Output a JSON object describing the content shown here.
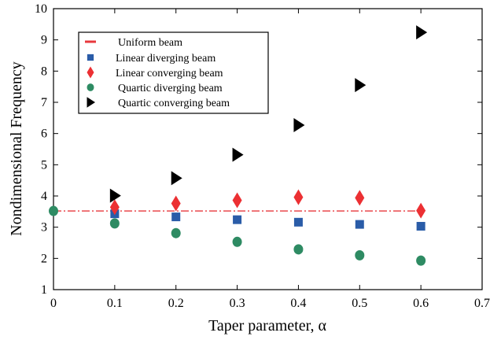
{
  "chart_data": {
    "type": "scatter",
    "title": "",
    "xlabel": "Taper parameter, α",
    "ylabel": "Nondimensional Frequency",
    "xlim": [
      0,
      0.7
    ],
    "ylim": [
      1,
      10
    ],
    "xticks": [
      "0",
      "0.1",
      "0.2",
      "0.3",
      "0.4",
      "0.5",
      "0.6",
      "0.7"
    ],
    "yticks": [
      "1",
      "2",
      "3",
      "4",
      "5",
      "6",
      "7",
      "8",
      "9",
      "10"
    ],
    "grid": false,
    "legend_position": "top-left",
    "series": [
      {
        "name": "Uniform beam",
        "marker": "dash-dot-line",
        "color": "#e8383d",
        "x": [
          0,
          0.6
        ],
        "y": [
          3.52,
          3.52
        ]
      },
      {
        "name": "Linear diverging beam",
        "marker": "square",
        "color": "#2a5ca8",
        "x": [
          0.1,
          0.2,
          0.3,
          0.4,
          0.5,
          0.6
        ],
        "y": [
          3.43,
          3.33,
          3.24,
          3.16,
          3.09,
          3.03
        ]
      },
      {
        "name": "Linear converging beam",
        "marker": "diamond",
        "color": "#ec3033",
        "x": [
          0.1,
          0.2,
          0.3,
          0.4,
          0.5,
          0.6
        ],
        "y": [
          3.64,
          3.76,
          3.86,
          3.96,
          3.94,
          3.53
        ]
      },
      {
        "name": "Quartic diverging beam",
        "marker": "circle",
        "color": "#2e8b63",
        "x": [
          0,
          0.1,
          0.2,
          0.3,
          0.4,
          0.5,
          0.6
        ],
        "y": [
          3.52,
          3.12,
          2.81,
          2.53,
          2.29,
          2.1,
          1.93
        ]
      },
      {
        "name": "Quartic converging beam",
        "marker": "triangle-right",
        "color": "#000000",
        "x": [
          0.1,
          0.2,
          0.3,
          0.4,
          0.5,
          0.6
        ],
        "y": [
          4.01,
          4.57,
          5.32,
          6.27,
          7.55,
          9.24
        ]
      }
    ]
  }
}
